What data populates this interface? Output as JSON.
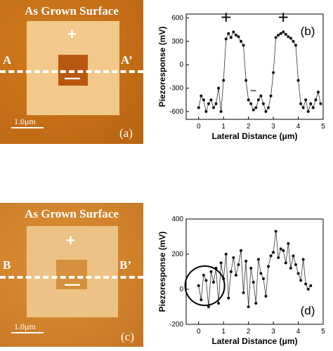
{
  "panel_a": {
    "title": "As Grown Surface",
    "plus": "+",
    "minus": "—",
    "left": "A",
    "right": "A’",
    "scale": "1.0μm",
    "label": "(a)"
  },
  "panel_c": {
    "title": "As Grown Surface",
    "plus": "+",
    "minus": "—",
    "left": "B",
    "right": "B’",
    "scale": "1.0μm",
    "label": "(c)"
  },
  "chart_data": [
    {
      "type": "scatter",
      "panel": "(b)",
      "xlabel": "Lateral Distance (μm)",
      "ylabel": "Piezoresponse (mV)",
      "xlim": [
        -0.5,
        5
      ],
      "ylim": [
        -700,
        650
      ],
      "xticks": [
        0,
        1,
        2,
        3,
        4,
        5
      ],
      "yticks": [
        600,
        300,
        0,
        -300,
        -600
      ],
      "annotations": [
        {
          "text": "+",
          "x": 1.1,
          "y": 600
        },
        {
          "text": "+",
          "x": 3.4,
          "y": 600
        },
        {
          "text": "−",
          "x": 2.2,
          "y": -310
        }
      ],
      "x": [
        0,
        0.1,
        0.2,
        0.3,
        0.4,
        0.5,
        0.6,
        0.7,
        0.8,
        0.9,
        1.0,
        1.1,
        1.2,
        1.3,
        1.4,
        1.5,
        1.6,
        1.7,
        1.8,
        1.9,
        2.0,
        2.1,
        2.2,
        2.3,
        2.4,
        2.5,
        2.6,
        2.7,
        2.8,
        2.9,
        3.0,
        3.1,
        3.2,
        3.3,
        3.4,
        3.5,
        3.6,
        3.7,
        3.8,
        3.9,
        4.0,
        4.1,
        4.2,
        4.3,
        4.4,
        4.5,
        4.6,
        4.7,
        4.8,
        4.9
      ],
      "y": [
        -550,
        -400,
        -450,
        -600,
        -500,
        -450,
        -550,
        -500,
        -300,
        -600,
        -200,
        330,
        400,
        350,
        420,
        380,
        360,
        300,
        250,
        -200,
        -450,
        -500,
        -580,
        -550,
        -450,
        -400,
        -500,
        -600,
        -550,
        -400,
        -100,
        350,
        380,
        400,
        420,
        390,
        360,
        340,
        300,
        250,
        -200,
        -500,
        -550,
        -450,
        -600,
        -500,
        -550,
        -450,
        -350,
        -500
      ]
    },
    {
      "type": "scatter",
      "panel": "(d)",
      "xlabel": "Lateral Distance (μm)",
      "ylabel": "Piezoresponse (mV)",
      "xlim": [
        -0.5,
        5
      ],
      "ylim": [
        -200,
        400
      ],
      "xticks": [
        0,
        1,
        2,
        3,
        4,
        5
      ],
      "yticks": [
        400,
        200,
        0,
        -200
      ],
      "x": [
        0,
        0.1,
        0.2,
        0.3,
        0.4,
        0.5,
        0.6,
        0.7,
        0.8,
        0.9,
        1.0,
        1.1,
        1.2,
        1.3,
        1.4,
        1.5,
        1.6,
        1.7,
        1.8,
        1.9,
        2.0,
        2.1,
        2.2,
        2.3,
        2.4,
        2.5,
        2.6,
        2.7,
        2.8,
        2.9,
        3.0,
        3.1,
        3.2,
        3.3,
        3.4,
        3.5,
        3.6,
        3.7,
        3.8,
        3.9,
        4.0,
        4.1,
        4.2,
        4.3,
        4.4,
        4.5
      ],
      "y": [
        20,
        -60,
        80,
        50,
        -100,
        100,
        40,
        120,
        -80,
        150,
        60,
        200,
        -50,
        100,
        180,
        80,
        140,
        220,
        -20,
        160,
        -100,
        120,
        40,
        -80,
        170,
        90,
        60,
        -40,
        130,
        190,
        210,
        330,
        180,
        230,
        220,
        150,
        260,
        120,
        190,
        140,
        90,
        50,
        170,
        30,
        0,
        20
      ]
    }
  ]
}
